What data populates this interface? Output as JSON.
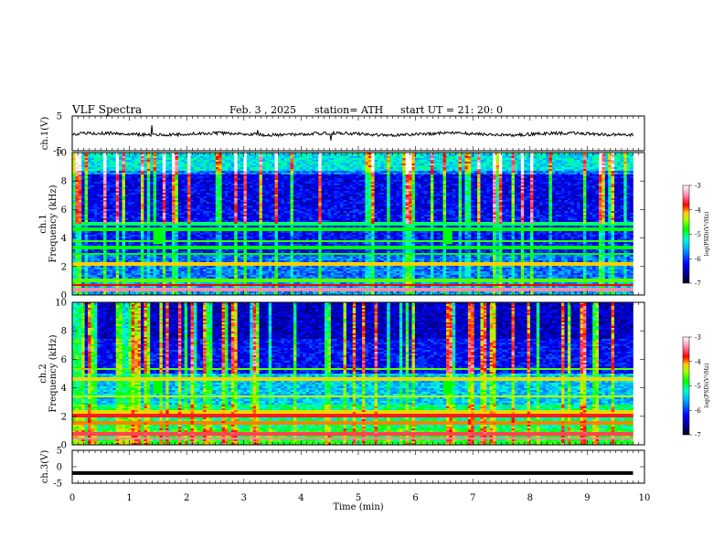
{
  "header": {
    "title": "VLF  Spectra",
    "date": "Feb. 3  , 2025",
    "station": "station= ATH",
    "start_ut": "start  UT  =    21: 20: 0"
  },
  "chart_data": [
    {
      "type": "line",
      "panel": "ch1-waveform",
      "ylabel": "ch.1(V)",
      "ylim": [
        -5,
        5
      ],
      "y_tick_labels": [
        "5",
        "-5"
      ],
      "xlim": [
        0,
        10
      ],
      "description_of_trace": "noisy baseline near 0 V with occasional spikes",
      "color": "#000000"
    },
    {
      "type": "heatmap",
      "panel": "ch1-spectrogram",
      "ylabel": "ch.1\nFrequency  (kHz)",
      "ylabel_line1": "ch.1",
      "ylabel_line2": "Frequency  (kHz)",
      "ylim": [
        0,
        10
      ],
      "y_tick_labels": [
        "0",
        "2",
        "4",
        "6",
        "8",
        "10"
      ],
      "xlim": [
        0,
        10
      ],
      "data_end_min": 9.8,
      "colorbar": {
        "label": "log(PSD)(V²/Hz)",
        "range": [
          -7,
          -3
        ],
        "tick_labels": [
          "-3",
          "-4",
          "-5",
          "-6",
          "-7"
        ]
      },
      "bursts_min": [
        1.45,
        6.55
      ]
    },
    {
      "type": "heatmap",
      "panel": "ch2-spectrogram",
      "ylabel_line1": "ch.2",
      "ylabel_line2": "Frequency  (kHz)",
      "ylim": [
        0,
        10
      ],
      "y_tick_labels": [
        "0",
        "2",
        "4",
        "6",
        "8",
        "10"
      ],
      "xlim": [
        0,
        10
      ],
      "data_end_min": 9.8,
      "colorbar": {
        "label": "log(PSD)(V²/Hz)",
        "range": [
          -7,
          -3
        ],
        "tick_labels": [
          "-3",
          "-4",
          "-5",
          "-6",
          "-7"
        ]
      },
      "bursts_min": [
        1.45,
        6.55
      ]
    },
    {
      "type": "line",
      "panel": "ch3-waveform",
      "ylabel": "ch.3(V)",
      "ylim": [
        -5,
        5
      ],
      "y_tick_labels": [
        "5",
        "0",
        "-5"
      ],
      "xlim": [
        0,
        10
      ],
      "flat_value_v": -1.9,
      "color": "#000000"
    }
  ],
  "x_axis": {
    "label": "Time  (min)",
    "tick_labels": [
      "0",
      "1",
      "2",
      "3",
      "4",
      "5",
      "6",
      "7",
      "8",
      "9",
      "10"
    ]
  }
}
